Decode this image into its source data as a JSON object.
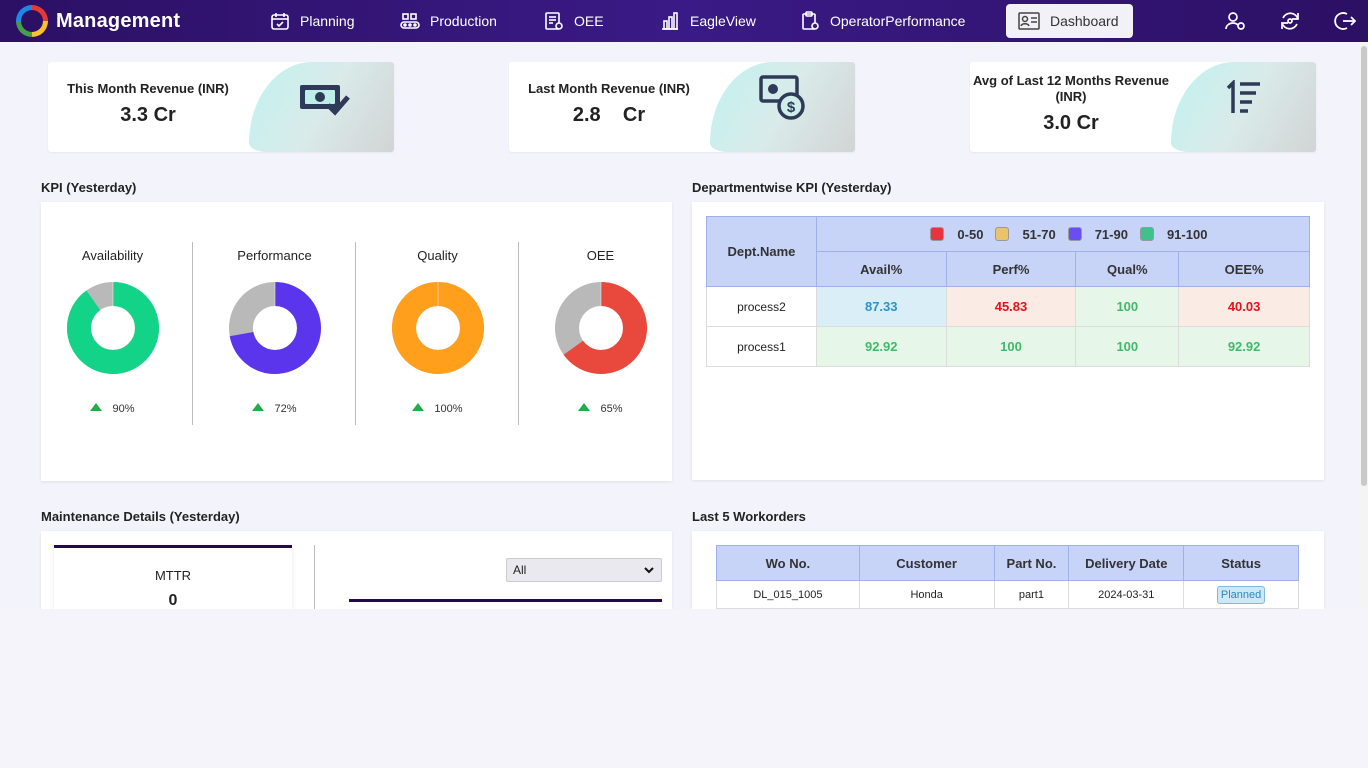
{
  "app": {
    "title": "Management"
  },
  "nav": {
    "items": [
      {
        "label": "Planning",
        "icon": "calendar-icon"
      },
      {
        "label": "Production",
        "icon": "conveyor-icon"
      },
      {
        "label": "OEE",
        "icon": "report-settings-icon"
      },
      {
        "label": "EagleView",
        "icon": "bar-chart-icon"
      },
      {
        "label": "OperatorPerformance",
        "icon": "clipboard-gear-icon"
      },
      {
        "label": "Dashboard",
        "icon": "dashboard-card-icon",
        "active": true
      }
    ],
    "right_icons": [
      "user-settings-icon",
      "refresh-icon",
      "logout-icon"
    ]
  },
  "revenue": {
    "this_month": {
      "label": "This Month Revenue (INR)",
      "value": "3.3 Cr",
      "icon": "money-check-icon"
    },
    "last_month": {
      "label": "Last Month Revenue (INR)",
      "value": "2.8    Cr",
      "icon": "money-dollar-icon"
    },
    "avg_12": {
      "label_line1": "Avg of Last 12 Months Revenue",
      "label_line2": "(INR)",
      "value": "3.0 Cr",
      "icon": "sort-numeric-icon"
    }
  },
  "kpi": {
    "title": "KPI (Yesterday)",
    "items": [
      {
        "name": "Availability",
        "percent": 90,
        "trend": "90%",
        "color": "#12d388"
      },
      {
        "name": "Performance",
        "percent": 72,
        "trend": "72%",
        "color": "#5b35ec"
      },
      {
        "name": "Quality",
        "percent": 100,
        "trend": "100%",
        "color": "#ff9f1c"
      },
      {
        "name": "OEE",
        "percent": 65,
        "trend": "65%",
        "color": "#e8493c"
      }
    ],
    "remainder_color": "#b9b9b9"
  },
  "dept_kpi": {
    "title": "Departmentwise KPI (Yesterday)",
    "header_name": "Dept.Name",
    "legend": [
      {
        "label": "0-50",
        "color": "#e8343f"
      },
      {
        "label": "51-70",
        "color": "#e9c46a"
      },
      {
        "label": "71-90",
        "color": "#6a4ef0"
      },
      {
        "label": "91-100",
        "color": "#3ec18c"
      }
    ],
    "columns": [
      "Avail%",
      "Perf%",
      "Qual%",
      "OEE%"
    ],
    "rows": [
      {
        "name": "process2",
        "values": [
          "87.33",
          "45.83",
          "100",
          "40.03"
        ],
        "classes": [
          "v-blue",
          "v-red",
          "v-green",
          "v-red"
        ]
      },
      {
        "name": "process1",
        "values": [
          "92.92",
          "100",
          "100",
          "92.92"
        ],
        "classes": [
          "v-green",
          "v-green",
          "v-green",
          "v-green"
        ]
      }
    ]
  },
  "maintenance": {
    "title": "Maintenance Details (Yesterday)",
    "mttr_label": "MTTR",
    "mttr_value": "0",
    "filter_selected": "All"
  },
  "workorders": {
    "title": "Last 5 Workorders",
    "columns": [
      "Wo No.",
      "Customer",
      "Part No.",
      "Delivery Date",
      "Status"
    ],
    "rows": [
      {
        "wo": "DL_015_1005",
        "customer": "Honda",
        "part": "part1",
        "date": "2024-03-31",
        "status": "Planned"
      }
    ]
  }
}
